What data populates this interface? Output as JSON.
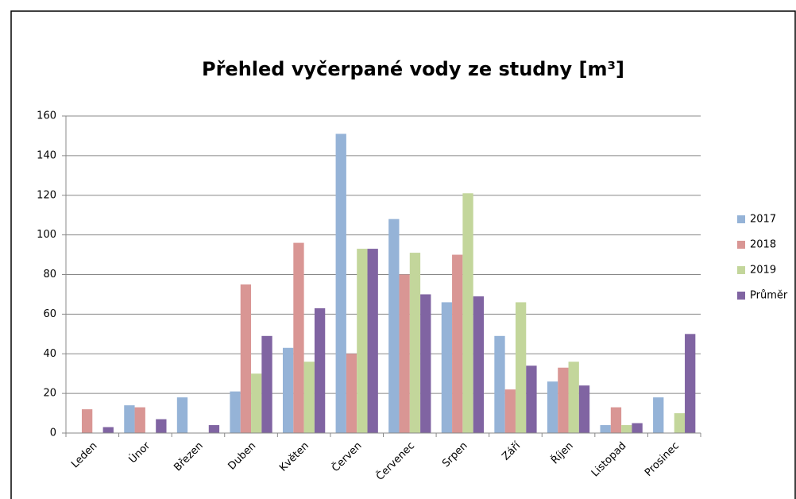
{
  "chart_data": {
    "type": "bar",
    "title": "Přehled vyčerpané vody ze studny [m³]",
    "categories": [
      "Leden",
      "Únor",
      "Březen",
      "Duben",
      "Květen",
      "Červen",
      "Červenec",
      "Srpen",
      "Září",
      "Říjen",
      "Listopad",
      "Prosinec"
    ],
    "series": [
      {
        "name": "2017",
        "color": "#95b3d7",
        "values": [
          0,
          14,
          18,
          21,
          43,
          151,
          108,
          66,
          49,
          26,
          4,
          18
        ]
      },
      {
        "name": "2018",
        "color": "#d99694",
        "values": [
          12,
          13,
          0,
          75,
          96,
          40,
          80,
          90,
          22,
          33,
          13,
          0
        ]
      },
      {
        "name": "2019",
        "color": "#c3d69b",
        "values": [
          0,
          0,
          0,
          30,
          36,
          93,
          91,
          121,
          66,
          36,
          4,
          10
        ]
      },
      {
        "name": "Průměr",
        "color": "#8064a2",
        "values": [
          3,
          7,
          4,
          49,
          63,
          93,
          70,
          69,
          34,
          24,
          5,
          50
        ]
      }
    ],
    "ylim": [
      0,
      160
    ],
    "yticks": [
      0,
      20,
      40,
      60,
      80,
      100,
      120,
      140,
      160
    ],
    "grid": true,
    "legend": "right"
  }
}
